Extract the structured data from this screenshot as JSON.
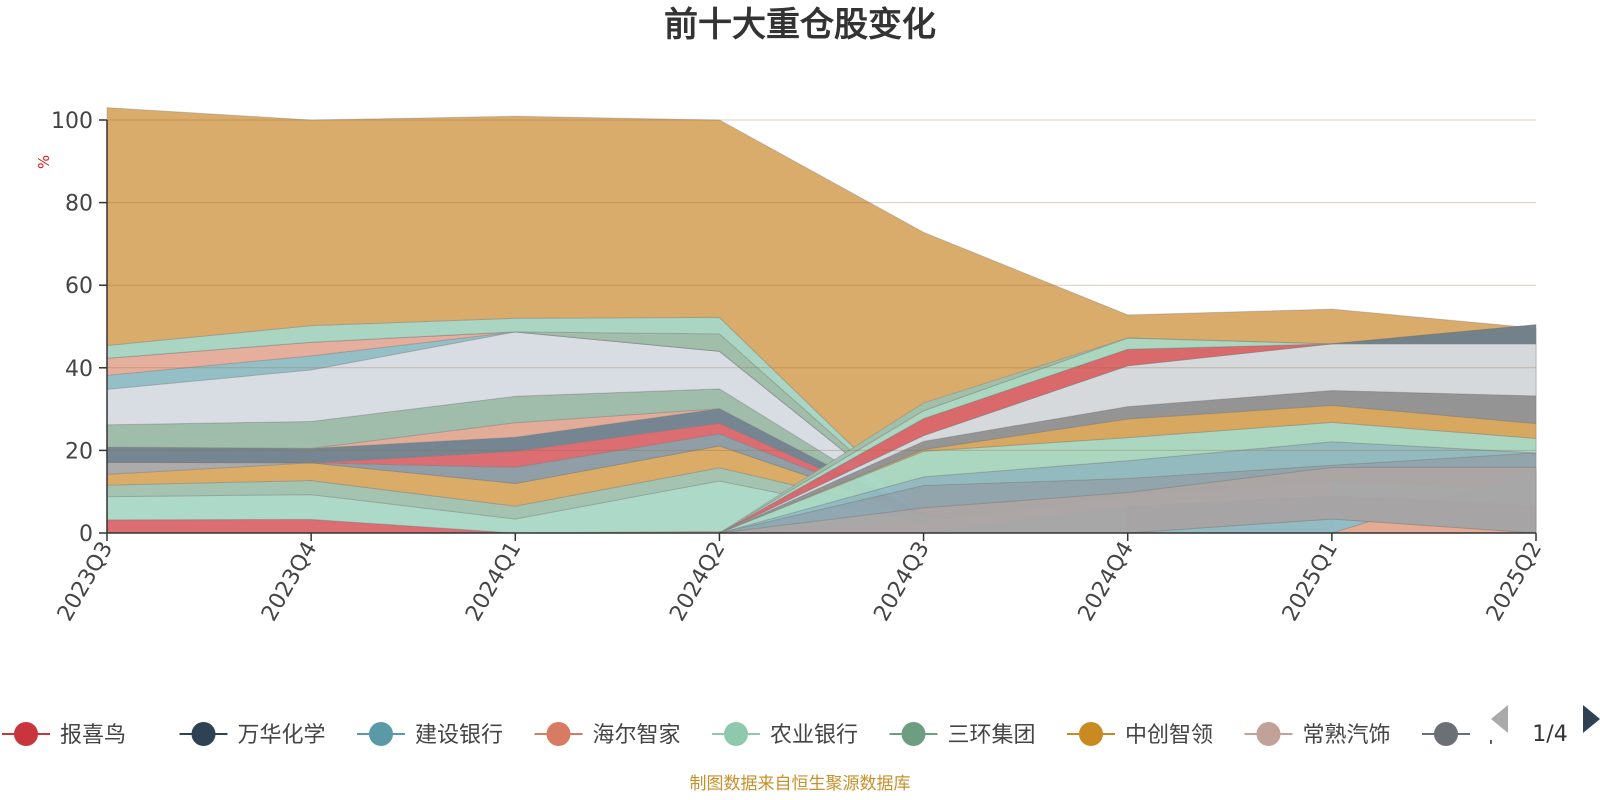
{
  "chart_data": {
    "type": "area",
    "title": "前十大重仓股变化",
    "ylabel": "%",
    "ylim": [
      0,
      100
    ],
    "yticks": [
      0,
      20,
      40,
      60,
      80,
      100
    ],
    "grid": true,
    "stacked": true,
    "categories": [
      "2023Q3",
      "2023Q4",
      "2024Q1",
      "2024Q2",
      "2024Q3",
      "2024Q4",
      "2025Q1",
      "2025Q2"
    ],
    "series": [
      {
        "name": "报喜鸟",
        "color": "#d9656b",
        "values": [
          3.2,
          3.3,
          0,
          0,
          0,
          0,
          0,
          0
        ]
      },
      {
        "name": "农业银行",
        "color": "#a9d8c5",
        "values": [
          5.6,
          6.0,
          3.4,
          12.6,
          2.6,
          0,
          0,
          0
        ]
      },
      {
        "name": "三环集团",
        "color": "#9fc0ad",
        "values": [
          2.8,
          3.4,
          3.1,
          3.2,
          1.7,
          0,
          0,
          0
        ]
      },
      {
        "name": "中创智领",
        "color": "#d8a860",
        "values": [
          2.6,
          4.3,
          5.5,
          5.3,
          0,
          0,
          0,
          0
        ]
      },
      {
        "name": "常熟汽饰",
        "color": "#a9a5a7",
        "values": [
          2.9,
          0,
          0,
          0,
          0,
          0,
          0,
          0
        ]
      },
      {
        "name": "建设银行",
        "color": "#8a9aa2",
        "values": [
          0,
          0,
          3.9,
          2.9,
          0,
          0,
          0,
          0
        ]
      },
      {
        "name": "",
        "color": "#d9656b",
        "values": [
          0,
          0,
          3.9,
          2.6,
          0,
          0,
          0,
          0
        ]
      },
      {
        "name": "万华化学",
        "color": "#6e7f8c",
        "values": [
          3.7,
          3.5,
          3.4,
          3.5,
          0,
          0,
          0,
          0
        ]
      },
      {
        "name": "",
        "color": "#e0a893",
        "values": [
          0,
          0,
          3.5,
          0,
          0,
          0,
          0,
          0
        ]
      },
      {
        "name": "",
        "color": "#9bb8a5",
        "values": [
          5.4,
          6.5,
          6.4,
          4.8,
          0,
          0,
          0,
          0
        ]
      },
      {
        "name": "",
        "color": "#d6dbe3",
        "values": [
          8.6,
          12.5,
          15.6,
          9.1,
          0,
          0,
          0,
          0
        ]
      },
      {
        "name": "",
        "color": "#8fbcc4",
        "values": [
          3.4,
          3.4,
          0,
          0,
          0,
          0,
          0,
          0
        ]
      },
      {
        "name": "",
        "color": "#e5ab98",
        "values": [
          4.1,
          3.3,
          0,
          0,
          0,
          0,
          0,
          0
        ]
      },
      {
        "name": "",
        "color": "#9cbaa5",
        "values": [
          0,
          0,
          0,
          4.2,
          0,
          0,
          0,
          0
        ]
      },
      {
        "name": "",
        "color": "#a5d3bf",
        "values": [
          3.1,
          4.0,
          3.3,
          4.0,
          0,
          0,
          0,
          0
        ]
      },
      {
        "name": "",
        "color": "#d7a863",
        "values": [
          57.6,
          49.8,
          48.9,
          47.8,
          68.5,
          52.8,
          54.2,
          49.6
        ]
      }
    ],
    "fixed_levels": [
      {
        "name": "",
        "color": "#e5ab98",
        "values": [
          0,
          0,
          0,
          0,
          0,
          0,
          0,
          0
        ],
        "tops": [
          0,
          0,
          0,
          0.4,
          2.8,
          9.2,
          12.6,
          10.5
        ]
      },
      {
        "name": "",
        "color": "#a9d8c5",
        "values": [
          0,
          0,
          0,
          0,
          0,
          0,
          0,
          0
        ],
        "tops": [
          0,
          0,
          0,
          0,
          0,
          0,
          0,
          15.3
        ]
      },
      {
        "name": "",
        "color": "#8fbcc4",
        "values": [
          0,
          0,
          0,
          0,
          0,
          0,
          0,
          0
        ],
        "tops": [
          0,
          0,
          0,
          0,
          0,
          6.4,
          9.0,
          6.6
        ]
      },
      {
        "name": "",
        "color": "#6e7f8c",
        "values": [
          0,
          0,
          0,
          0,
          0,
          0,
          0,
          0
        ],
        "tops": [
          0,
          0,
          0,
          0,
          0,
          0,
          3.4,
          0
        ]
      },
      {
        "name": "",
        "color": "#a9a5a7",
        "values": [
          0,
          0,
          0,
          0,
          0,
          0,
          0,
          0
        ],
        "tops": [
          0,
          0,
          0,
          0,
          6.1,
          9.8,
          15.9,
          15.9
        ]
      },
      {
        "name": "",
        "color": "#8fa4b0",
        "values": [
          0,
          0,
          0,
          0,
          0,
          0,
          0,
          0
        ],
        "tops": [
          0,
          0,
          0,
          0,
          11.5,
          13.2,
          16.4,
          19.4
        ]
      },
      {
        "name": "",
        "color": "#8fbcc4",
        "values": [
          0,
          0,
          0,
          0,
          0,
          0,
          0,
          0
        ],
        "tops": [
          0,
          0,
          0,
          0,
          13.6,
          17.5,
          22.1,
          19.4
        ]
      },
      {
        "name": "",
        "color": "#a9d8c5",
        "values": [
          0,
          0,
          0,
          0,
          0,
          0,
          0,
          0
        ],
        "tops": [
          0,
          0,
          0,
          0,
          19.8,
          23.1,
          26.8,
          22.9
        ]
      },
      {
        "name": "",
        "color": "#d8a860",
        "values": [
          0,
          0,
          0,
          0,
          0,
          0,
          0,
          0
        ],
        "tops": [
          0,
          0,
          0,
          0,
          20.2,
          27.6,
          30.9,
          26.5
        ]
      },
      {
        "name": "",
        "color": "#8f9296",
        "values": [
          0,
          0,
          0,
          0,
          0,
          0,
          0,
          0
        ],
        "tops": [
          0,
          0,
          0,
          0,
          22.2,
          30.6,
          34.5,
          33.2
        ]
      },
      {
        "name": "",
        "color": "#d6dbe3",
        "values": [
          0,
          0,
          0,
          0,
          0,
          0,
          0,
          0
        ],
        "tops": [
          0,
          0,
          0,
          0,
          23.6,
          40.5,
          45.8,
          45.8
        ]
      },
      {
        "name": "",
        "color": "#6e7f8c",
        "values": [
          0,
          0,
          0,
          0,
          0,
          0,
          0,
          0
        ],
        "tops": [
          0,
          0,
          0,
          0,
          23.6,
          40.5,
          45.8,
          50.4
        ]
      },
      {
        "name": "",
        "color": "#d9656b",
        "values": [
          0,
          0,
          0,
          0,
          0,
          0,
          0,
          0
        ],
        "tops": [
          0,
          0,
          0,
          0,
          27.7,
          44.5,
          45.8,
          50.4
        ]
      },
      {
        "name": "",
        "color": "#a9d8c5",
        "values": [
          0,
          0,
          0,
          0,
          0,
          0,
          0,
          0
        ],
        "tops": [
          0,
          0,
          0,
          0,
          29.6,
          47.2,
          45.8,
          50.4
        ]
      },
      {
        "name": "",
        "color": "#9fc0ad",
        "values": [
          0,
          0,
          0,
          0,
          0,
          0,
          0,
          0
        ],
        "tops": [
          0,
          0,
          0,
          0,
          31.5,
          47.2,
          45.8,
          50.4
        ]
      }
    ]
  },
  "legend": {
    "items": [
      {
        "name": "报喜鸟",
        "color": "#c9353d"
      },
      {
        "name": "万华化学",
        "color": "#2e4253"
      },
      {
        "name": "建设银行",
        "color": "#5a9aa8"
      },
      {
        "name": "海尔智家",
        "color": "#d77c62"
      },
      {
        "name": "农业银行",
        "color": "#8ec9ad"
      },
      {
        "name": "三环集团",
        "color": "#6e9e82"
      },
      {
        "name": "中创智领",
        "color": "#c98a22"
      },
      {
        "name": "常熟汽饰",
        "color": "#c2a198"
      },
      {
        "name": "中",
        "color": "#6b6f76"
      }
    ],
    "page": "1/4"
  },
  "footer": {
    "source": "制图数据来自恒生聚源数据库"
  }
}
